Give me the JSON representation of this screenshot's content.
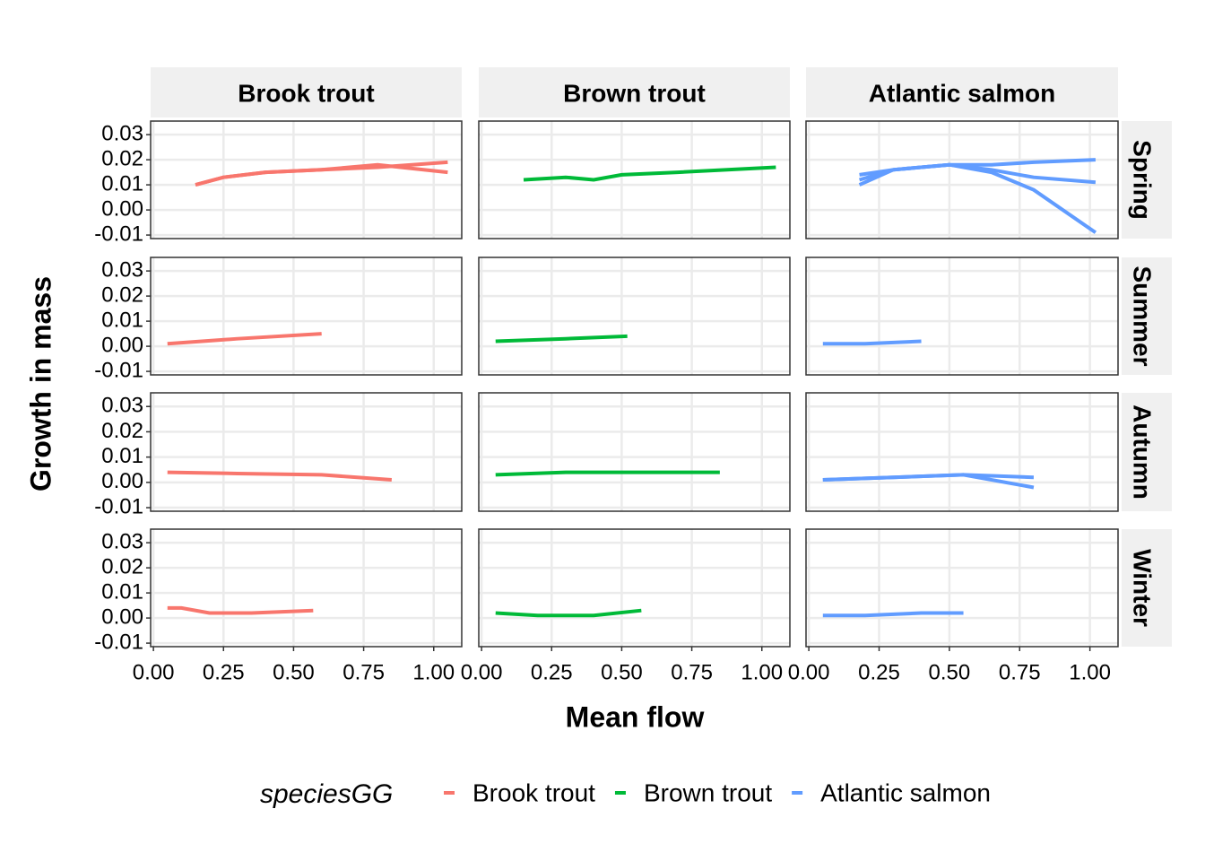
{
  "chart_data": {
    "type": "line",
    "x_label": "Mean flow",
    "y_label": "Growth in mass",
    "legend_title": "speciesGG",
    "series": [
      {
        "name": "Brook trout",
        "color": "#f8766d"
      },
      {
        "name": "Brown trout",
        "color": "#00ba38"
      },
      {
        "name": "Atlantic salmon",
        "color": "#619cff"
      }
    ],
    "rows": [
      "Spring",
      "Summer",
      "Autumn",
      "Winter"
    ],
    "xlim": [
      -0.01,
      1.1
    ],
    "ylim": [
      -0.0114,
      0.0354
    ],
    "xticks": [
      {
        "value": 0,
        "label": "0.00"
      },
      0.25,
      {
        "value": 0.5,
        "label": "0.50"
      },
      0.75,
      {
        "value": 1,
        "label": "1.00"
      }
    ],
    "yticks": [
      0.03,
      0.02,
      0.01,
      {
        "value": 0,
        "label": "0.00"
      },
      -0.01
    ],
    "grid": true,
    "panels": [
      [
        {
          "lines": [
            {
              "x": [
                0.15,
                0.25,
                0.4,
                0.6,
                0.8,
                1.05
              ],
              "y": [
                0.01,
                0.013,
                0.015,
                0.016,
                0.017,
                0.019
              ]
            },
            {
              "x": [
                0.15,
                0.25,
                0.4,
                0.6,
                0.8,
                1.05
              ],
              "y": [
                0.01,
                0.013,
                0.015,
                0.016,
                0.018,
                0.015
              ]
            }
          ]
        },
        {
          "lines": [
            {
              "x": [
                0.15,
                0.3,
                0.4,
                0.5,
                0.7,
                1.05
              ],
              "y": [
                0.012,
                0.013,
                0.012,
                0.014,
                0.015,
                0.017
              ]
            }
          ]
        },
        {
          "lines": [
            {
              "x": [
                0.18,
                0.3,
                0.5,
                0.65,
                0.8,
                1.02
              ],
              "y": [
                0.014,
                0.016,
                0.018,
                0.018,
                0.019,
                0.02
              ]
            },
            {
              "x": [
                0.18,
                0.3,
                0.5,
                0.65,
                0.8,
                1.02
              ],
              "y": [
                0.012,
                0.016,
                0.018,
                0.016,
                0.013,
                0.011
              ]
            },
            {
              "x": [
                0.18,
                0.3,
                0.5,
                0.65,
                0.8,
                1.02
              ],
              "y": [
                0.01,
                0.016,
                0.018,
                0.015,
                0.008,
                -0.009
              ]
            }
          ]
        }
      ],
      [
        {
          "lines": [
            {
              "x": [
                0.05,
                0.3,
                0.6
              ],
              "y": [
                0.001,
                0.003,
                0.005
              ]
            }
          ]
        },
        {
          "lines": [
            {
              "x": [
                0.05,
                0.3,
                0.52
              ],
              "y": [
                0.002,
                0.003,
                0.004
              ]
            }
          ]
        },
        {
          "lines": [
            {
              "x": [
                0.05,
                0.2,
                0.4
              ],
              "y": [
                0.001,
                0.001,
                0.002
              ]
            }
          ]
        }
      ],
      [
        {
          "lines": [
            {
              "x": [
                0.05,
                0.3,
                0.6,
                0.85
              ],
              "y": [
                0.004,
                0.0035,
                0.003,
                0.001
              ]
            }
          ]
        },
        {
          "lines": [
            {
              "x": [
                0.05,
                0.3,
                0.85
              ],
              "y": [
                0.003,
                0.004,
                0.004
              ]
            }
          ]
        },
        {
          "lines": [
            {
              "x": [
                0.05,
                0.3,
                0.55,
                0.8
              ],
              "y": [
                0.001,
                0.002,
                0.003,
                0.002
              ]
            },
            {
              "x": [
                0.05,
                0.3,
                0.55,
                0.8
              ],
              "y": [
                0.001,
                0.002,
                0.003,
                -0.002
              ]
            }
          ]
        }
      ],
      [
        {
          "lines": [
            {
              "x": [
                0.05,
                0.1,
                0.2,
                0.35,
                0.57
              ],
              "y": [
                0.004,
                0.004,
                0.002,
                0.002,
                0.003
              ]
            }
          ]
        },
        {
          "lines": [
            {
              "x": [
                0.05,
                0.2,
                0.4,
                0.57
              ],
              "y": [
                0.002,
                0.001,
                0.001,
                0.003
              ]
            }
          ]
        },
        {
          "lines": [
            {
              "x": [
                0.05,
                0.2,
                0.4,
                0.55
              ],
              "y": [
                0.001,
                0.001,
                0.002,
                0.002
              ]
            }
          ]
        }
      ]
    ]
  }
}
